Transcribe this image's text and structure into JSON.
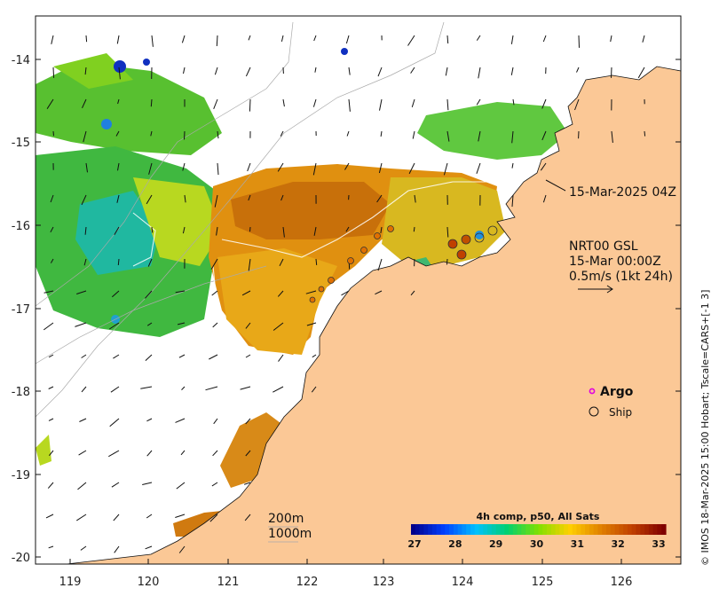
{
  "map": {
    "lon_ticks": [
      "119",
      "120",
      "121",
      "122",
      "123",
      "124",
      "125",
      "126"
    ],
    "lat_ticks": [
      "-14",
      "-15",
      "-16",
      "-17",
      "-18",
      "-19",
      "-20"
    ],
    "timestamp_label": "15-Mar-2025 04Z",
    "current_info": {
      "line1": "NRT00 GSL",
      "line2": "15-Mar 00:00Z",
      "line3": "0.5m/s (1kt 24h)"
    },
    "legend": {
      "argo": "Argo",
      "ship": "Ship"
    },
    "contours": {
      "c200": "200m",
      "c1000": "1000m"
    },
    "colorbar": {
      "title": "4h comp, p50, All Sats",
      "labels": [
        "27",
        "28",
        "29",
        "30",
        "31",
        "32",
        "33"
      ],
      "colors": [
        "#00008b",
        "#0040ff",
        "#00c0ff",
        "#00d070",
        "#80e000",
        "#ffd000",
        "#e08000",
        "#c04000",
        "#800000"
      ]
    },
    "credit": "© IMOS 18-Mar-2025 15:00 Hobart; Tscale=CARS+[-1 3]",
    "colors": {
      "land": "#fbc896",
      "warm": "#d98a10",
      "hot": "#c0600a",
      "mid": "#e8b000",
      "green": "#60c840",
      "cool": "#30b060",
      "yellowgreen": "#b8d820"
    }
  }
}
